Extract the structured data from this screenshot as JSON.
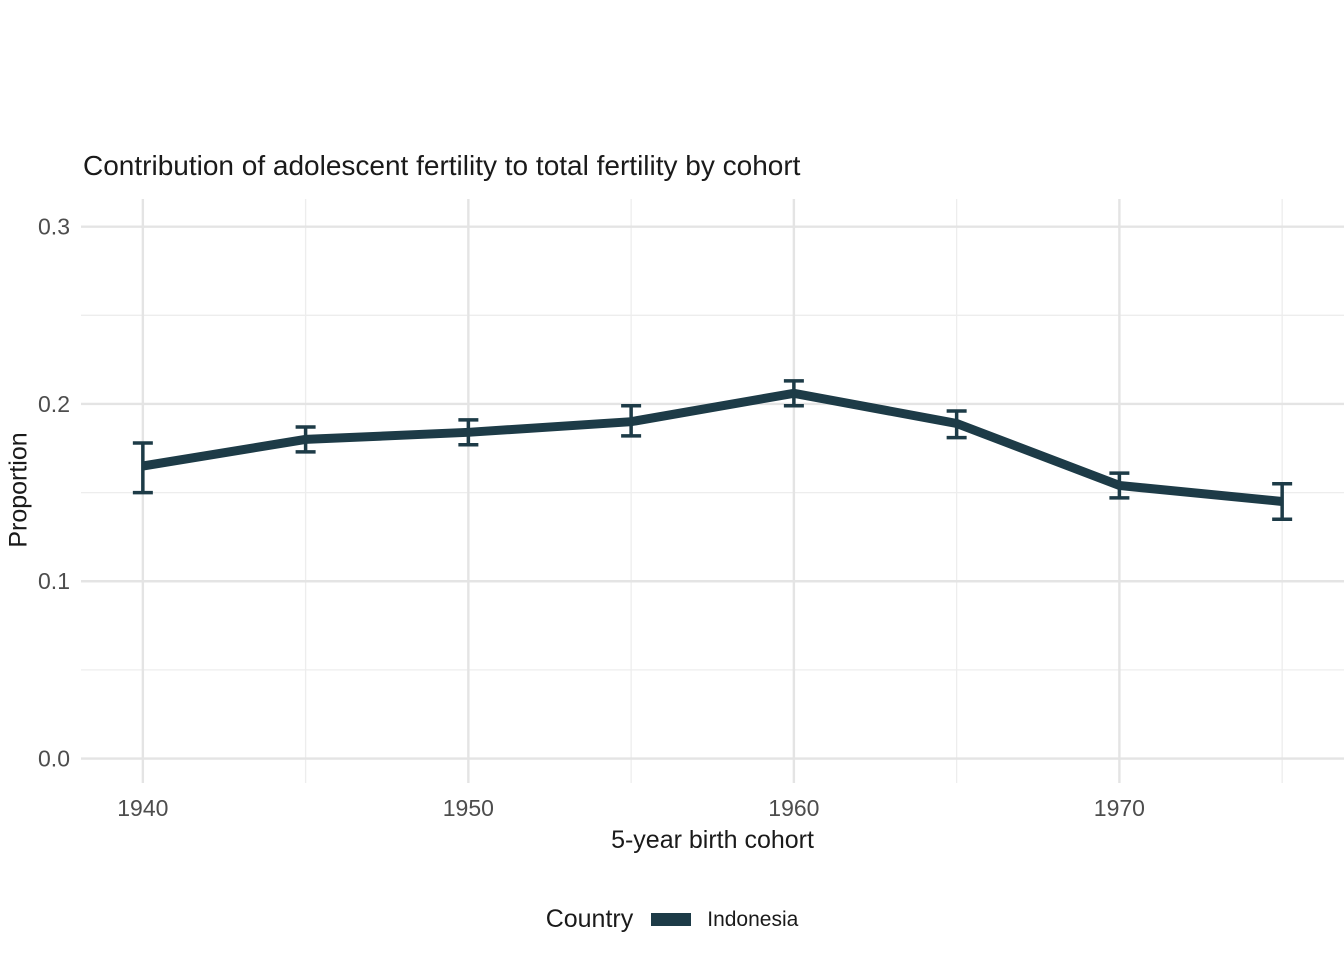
{
  "title": "Contribution of adolescent fertility to total fertility by cohort",
  "legend": {
    "title": "Country",
    "items": [
      {
        "label": "Indonesia",
        "color": "#1d3b47"
      }
    ]
  },
  "colors": {
    "background": "#ffffff",
    "grid_major": "#e4e4e4",
    "grid_minor": "#ededed",
    "tick_text": "#4d4d4d",
    "title_text": "#1a1a1a",
    "series": "#1d3b47"
  },
  "chart_data": {
    "type": "line",
    "title": "Contribution of adolescent fertility to total fertility by cohort",
    "xlabel": "5-year birth cohort",
    "ylabel": "Proportion",
    "x": [
      1940,
      1945,
      1950,
      1955,
      1960,
      1965,
      1970,
      1975
    ],
    "series": [
      {
        "name": "Indonesia",
        "color": "#1d3b47",
        "values": [
          0.165,
          0.18,
          0.184,
          0.19,
          0.206,
          0.189,
          0.154,
          0.145
        ],
        "ci_low": [
          0.15,
          0.173,
          0.177,
          0.182,
          0.199,
          0.181,
          0.147,
          0.135
        ],
        "ci_high": [
          0.178,
          0.187,
          0.191,
          0.199,
          0.213,
          0.196,
          0.161,
          0.155
        ]
      }
    ],
    "error_bars": true,
    "x_ticks": [
      1940,
      1950,
      1960,
      1970
    ],
    "x_tick_labels": [
      "1940",
      "1950",
      "1960",
      "1970"
    ],
    "x_minor": [
      1945,
      1955,
      1965,
      1975
    ],
    "y_ticks": [
      0.0,
      0.1,
      0.2,
      0.3
    ],
    "y_tick_labels": [
      "0.0",
      "0.1",
      "0.2",
      "0.3"
    ],
    "y_minor": [
      0.05,
      0.15,
      0.25
    ],
    "xlim": [
      1938.1,
      1976.9
    ],
    "ylim": [
      -0.0138,
      0.3156
    ],
    "grid": true,
    "legend_position": "bottom"
  }
}
